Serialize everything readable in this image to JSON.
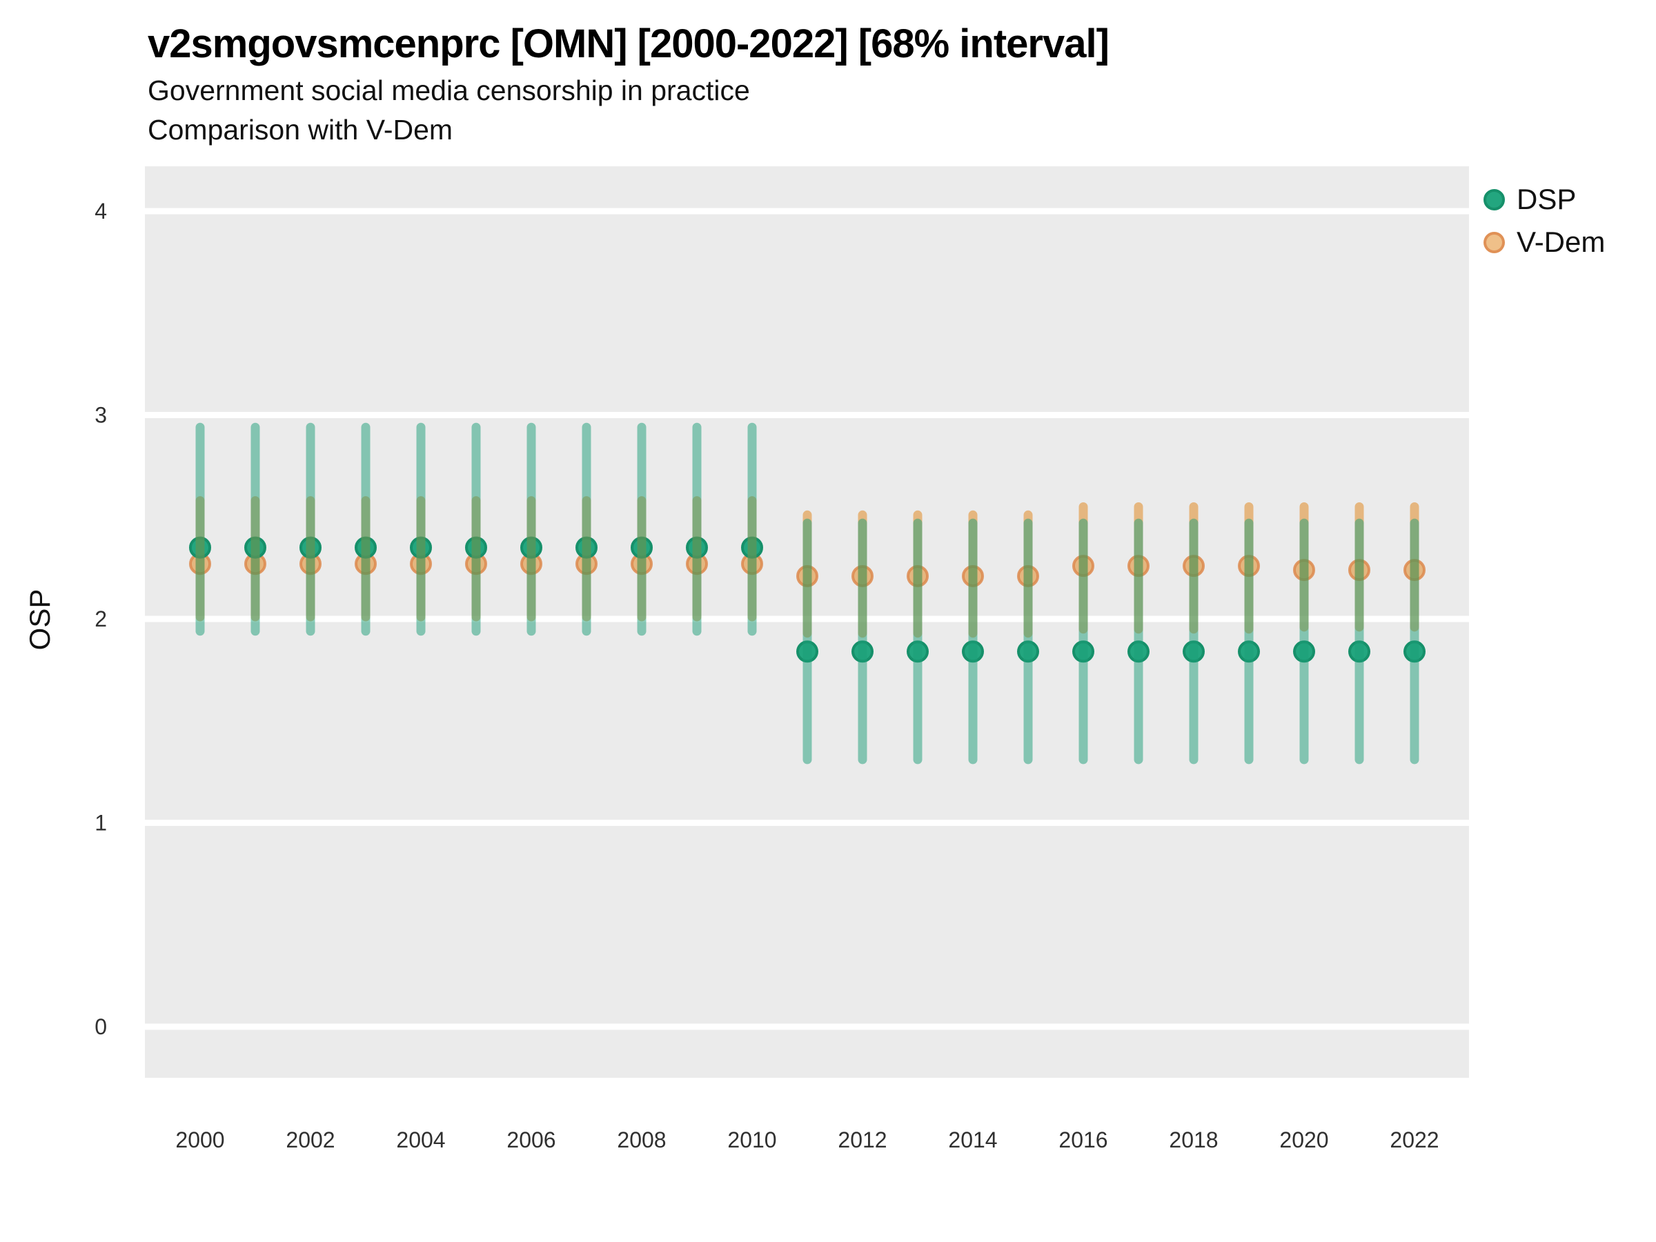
{
  "header": {
    "title": "v2smgovsmcenprc [OMN] [2000-2022] [68% interval]",
    "subtitle1": "Government social media censorship in practice",
    "subtitle2": "Comparison with V-Dem"
  },
  "axes": {
    "y_title": "OSP"
  },
  "legend": {
    "position": "right",
    "items": [
      {
        "label": "DSP"
      },
      {
        "label": "V-Dem"
      }
    ]
  },
  "colors": {
    "panel_background": "#ebebeb",
    "gridline": "#ffffff",
    "dsp_base": "#1b9e77",
    "vdem_base": "#e08214",
    "axis_text": "#303030"
  },
  "chart_data": {
    "type": "pointrange-scatter",
    "title": "v2smgovsmcenprc [OMN] [2000-2022] [68% interval]",
    "subtitle": [
      "Government social media censorship in practice",
      "Comparison with V-Dem"
    ],
    "interval": "68%",
    "xlabel": "",
    "ylabel": "OSP",
    "grid": "horizontal-major-only",
    "legend_position": "right",
    "x": [
      2000,
      2001,
      2002,
      2003,
      2004,
      2005,
      2006,
      2007,
      2008,
      2009,
      2010,
      2011,
      2012,
      2013,
      2014,
      2015,
      2016,
      2017,
      2018,
      2019,
      2020,
      2021,
      2022
    ],
    "xticks": [
      2000,
      2002,
      2004,
      2006,
      2008,
      2010,
      2012,
      2014,
      2016,
      2018,
      2020,
      2022
    ],
    "yticks": [
      0,
      1,
      2,
      3,
      4
    ],
    "xlim": [
      1999,
      2023
    ],
    "ylim": [
      -0.25,
      4.22
    ],
    "series": [
      {
        "name": "DSP",
        "point": [
          2.35,
          2.35,
          2.35,
          2.35,
          2.35,
          2.35,
          2.35,
          2.35,
          2.35,
          2.35,
          2.35,
          1.84,
          1.84,
          1.84,
          1.84,
          1.84,
          1.84,
          1.84,
          1.84,
          1.84,
          1.84,
          1.84,
          1.84
        ],
        "lower": [
          1.94,
          1.94,
          1.94,
          1.94,
          1.94,
          1.94,
          1.94,
          1.94,
          1.94,
          1.94,
          1.94,
          1.31,
          1.31,
          1.31,
          1.31,
          1.31,
          1.31,
          1.31,
          1.31,
          1.31,
          1.31,
          1.31,
          1.31
        ],
        "upper": [
          2.94,
          2.94,
          2.94,
          2.94,
          2.94,
          2.94,
          2.94,
          2.94,
          2.94,
          2.94,
          2.94,
          2.47,
          2.47,
          2.47,
          2.47,
          2.47,
          2.47,
          2.47,
          2.47,
          2.47,
          2.47,
          2.47,
          2.47
        ],
        "point_fill": "#23a67f",
        "point_stroke": "#16906a",
        "bar_color": "rgba(27,158,119,0.5)"
      },
      {
        "name": "V-Dem",
        "point": [
          2.27,
          2.27,
          2.27,
          2.27,
          2.27,
          2.27,
          2.27,
          2.27,
          2.27,
          2.27,
          2.27,
          2.21,
          2.21,
          2.21,
          2.21,
          2.21,
          2.26,
          2.26,
          2.26,
          2.26,
          2.24,
          2.24,
          2.24
        ],
        "lower": [
          2.01,
          2.01,
          2.01,
          2.01,
          2.01,
          2.01,
          2.01,
          2.01,
          2.01,
          2.01,
          2.01,
          1.93,
          1.93,
          1.93,
          1.93,
          1.93,
          1.95,
          1.95,
          1.95,
          1.95,
          1.96,
          1.96,
          1.96
        ],
        "upper": [
          2.58,
          2.58,
          2.58,
          2.58,
          2.58,
          2.58,
          2.58,
          2.58,
          2.58,
          2.58,
          2.58,
          2.51,
          2.51,
          2.51,
          2.51,
          2.51,
          2.55,
          2.55,
          2.55,
          2.55,
          2.55,
          2.55,
          2.55
        ],
        "point_fill": "rgba(224,130,20,0.5)",
        "point_stroke": "rgba(221,138,78,0.85)",
        "bar_color": "rgba(224,130,20,0.5)"
      }
    ]
  }
}
